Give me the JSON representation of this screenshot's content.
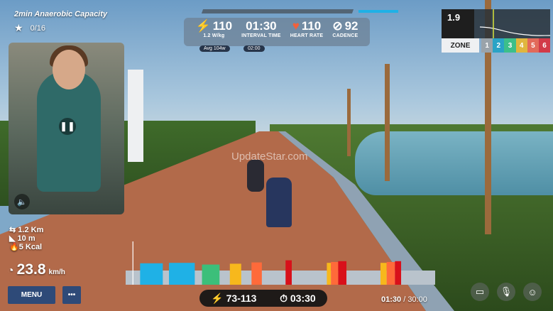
{
  "workout": {
    "title": "2min Anaerobic Capacity",
    "stars": "0/16"
  },
  "watermark": "UpdateStar.com",
  "metrics": {
    "power": {
      "value": "110",
      "sub": "1.2 W/kg",
      "avg": "Avg 104w"
    },
    "interval": {
      "value": "01:30",
      "label": "INTERVAL TIME",
      "next": "02:00"
    },
    "heart_rate": {
      "value": "110",
      "label": "HEART RATE"
    },
    "cadence": {
      "value": "92",
      "label": "CADENCE"
    }
  },
  "zone": {
    "value": "1.9",
    "label": "ZONE",
    "current": 1,
    "zones": [
      {
        "n": "1",
        "color": "#9aa3aa"
      },
      {
        "n": "2",
        "color": "#2aa3c6"
      },
      {
        "n": "3",
        "color": "#3cbf8a"
      },
      {
        "n": "4",
        "color": "#e0b63e"
      },
      {
        "n": "5",
        "color": "#e26a5a"
      },
      {
        "n": "6",
        "color": "#d23a48"
      }
    ]
  },
  "ride_stats": {
    "distance": "1.2 Km",
    "elevation": "10  m",
    "calories": "5 Kcal",
    "speed": "23.8",
    "speed_unit": "km/h"
  },
  "buttons": {
    "menu": "MENU",
    "more": "•••"
  },
  "target": {
    "power_range": "73-113",
    "duration": "03:30"
  },
  "time": {
    "elapsed": "01:30",
    "total": "/ 30:00"
  },
  "video": {
    "pause_icon": "pause-icon",
    "sound_icon": "speaker-icon"
  },
  "workout_profile": {
    "total_minutes": 30,
    "elapsed_minutes": 1.5,
    "colors": {
      "base": "#b9c3cc",
      "blue": "#1fb1e6",
      "green": "#3cbf7a",
      "yellow": "#f7b81c",
      "orange": "#ff6a3a",
      "red": "#d8101a"
    },
    "segments": [
      {
        "start": 1.4,
        "end": 3.6,
        "color": "blue",
        "level": 0.85
      },
      {
        "start": 4.2,
        "end": 6.7,
        "color": "blue",
        "level": 0.9
      },
      {
        "start": 7.4,
        "end": 9.1,
        "color": "green",
        "level": 0.7
      },
      {
        "start": 10.1,
        "end": 11.2,
        "color": "yellow",
        "level": 0.8
      },
      {
        "start": 12.2,
        "end": 13.2,
        "color": "orange",
        "level": 0.95
      },
      {
        "start": 15.5,
        "end": 16.1,
        "color": "red",
        "level": 1.2
      },
      {
        "start": 19.5,
        "end": 19.9,
        "color": "yellow",
        "level": 0.9
      },
      {
        "start": 19.9,
        "end": 20.6,
        "color": "orange",
        "level": 1.0
      },
      {
        "start": 20.6,
        "end": 21.4,
        "color": "red",
        "level": 1.1
      },
      {
        "start": 24.7,
        "end": 25.3,
        "color": "yellow",
        "level": 0.9
      },
      {
        "start": 25.3,
        "end": 26.1,
        "color": "orange",
        "level": 1.0
      },
      {
        "start": 26.1,
        "end": 26.7,
        "color": "red",
        "level": 1.1
      }
    ]
  },
  "social": {
    "chat": "chat-icon",
    "mic": "microphone-icon",
    "emoji": "emoji-icon"
  }
}
